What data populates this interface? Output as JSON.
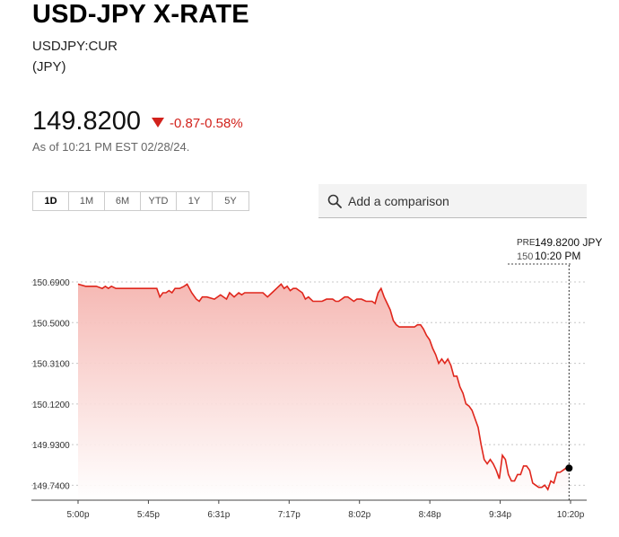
{
  "header": {
    "title": "USD-JPY X-RATE",
    "ticker": "USDJPY:CUR",
    "currency": "(JPY)"
  },
  "quote": {
    "price": "149.8200",
    "change": "-0.87",
    "change_pct": "-0.58%",
    "as_of": "As of 10:21 PM EST 02/28/24."
  },
  "ranges": [
    "1D",
    "1M",
    "6M",
    "YTD",
    "1Y",
    "5Y"
  ],
  "active_range": "1D",
  "compare": {
    "placeholder": "Add a comparison"
  },
  "colors": {
    "down": "#d2221c",
    "line": "#e0261c",
    "fill_top": "#f5b5b0"
  },
  "tooltip": {
    "prefix_top": "PRE",
    "prefix_bottom": "150",
    "price": "149.8200 JPY",
    "time": "10:20 PM"
  },
  "chart_data": {
    "type": "area",
    "ytick_labels": [
      "150.6900",
      "150.5000",
      "150.3100",
      "150.1200",
      "149.9300",
      "149.7400"
    ],
    "ylim": [
      149.67,
      150.77
    ],
    "xtick_labels": [
      "5:00p",
      "5:45p",
      "6:31p",
      "7:17p",
      "8:02p",
      "8:48p",
      "9:34p",
      "10:20p"
    ],
    "x_minutes_from_5pm": [
      0,
      5,
      8,
      12,
      16,
      18,
      20,
      22,
      25,
      30,
      32,
      34,
      36,
      38,
      40,
      42,
      45,
      48,
      52,
      54,
      56,
      58,
      60,
      62,
      64,
      67,
      70,
      72,
      75,
      78,
      80,
      82,
      85,
      90,
      94,
      98,
      100,
      103,
      106,
      108,
      110,
      112,
      115,
      118,
      122,
      125,
      128,
      131,
      134,
      136,
      138,
      140,
      142,
      144,
      146,
      148,
      150,
      152,
      155,
      158,
      161,
      164,
      168,
      170,
      172,
      174,
      176,
      178,
      180,
      182,
      184,
      187,
      190,
      194,
      196,
      198,
      200,
      202,
      204,
      206,
      208,
      210,
      212,
      214,
      216,
      218,
      220,
      222,
      224,
      226,
      228,
      230,
      232,
      234,
      236,
      238,
      240,
      242,
      244,
      246,
      248,
      250,
      252,
      254,
      256,
      258,
      260,
      262,
      264,
      266,
      268,
      270,
      272,
      274,
      276,
      278,
      280,
      282,
      284,
      286,
      288,
      290,
      292,
      294,
      296,
      298,
      300,
      302,
      304,
      306,
      308,
      310,
      312,
      314,
      316,
      318,
      320,
      322,
      324
    ],
    "values": [
      150.68,
      150.67,
      150.67,
      150.67,
      150.66,
      150.67,
      150.66,
      150.67,
      150.66,
      150.66,
      150.66,
      150.66,
      150.66,
      150.66,
      150.66,
      150.66,
      150.66,
      150.66,
      150.66,
      150.62,
      150.64,
      150.64,
      150.65,
      150.64,
      150.66,
      150.66,
      150.67,
      150.68,
      150.64,
      150.61,
      150.6,
      150.62,
      150.62,
      150.61,
      150.63,
      150.61,
      150.64,
      150.62,
      150.64,
      150.63,
      150.64,
      150.64,
      150.64,
      150.64,
      150.64,
      150.62,
      150.64,
      150.66,
      150.68,
      150.66,
      150.67,
      150.65,
      150.66,
      150.66,
      150.65,
      150.64,
      150.61,
      150.62,
      150.6,
      150.6,
      150.6,
      150.61,
      150.61,
      150.6,
      150.6,
      150.61,
      150.62,
      150.62,
      150.61,
      150.6,
      150.61,
      150.61,
      150.6,
      150.6,
      150.59,
      150.64,
      150.66,
      150.62,
      150.59,
      150.56,
      150.51,
      150.49,
      150.48,
      150.48,
      150.48,
      150.48,
      150.48,
      150.48,
      150.49,
      150.49,
      150.47,
      150.44,
      150.42,
      150.38,
      150.35,
      150.31,
      150.33,
      150.31,
      150.33,
      150.3,
      150.25,
      150.25,
      150.2,
      150.17,
      150.12,
      150.11,
      150.09,
      150.05,
      150.01,
      149.93,
      149.86,
      149.84,
      149.86,
      149.84,
      149.81,
      149.77,
      149.88,
      149.86,
      149.79,
      149.76,
      149.76,
      149.79,
      149.79,
      149.83,
      149.83,
      149.81,
      149.75,
      149.74,
      149.73,
      149.73,
      149.74,
      149.72,
      149.76,
      149.75,
      149.8,
      149.8,
      149.81,
      149.82,
      149.82
    ],
    "last": {
      "label": "149.8200 JPY",
      "time": "10:20 PM"
    },
    "grid": "horizontal-dotted",
    "title": "",
    "xlabel": "",
    "ylabel": ""
  }
}
